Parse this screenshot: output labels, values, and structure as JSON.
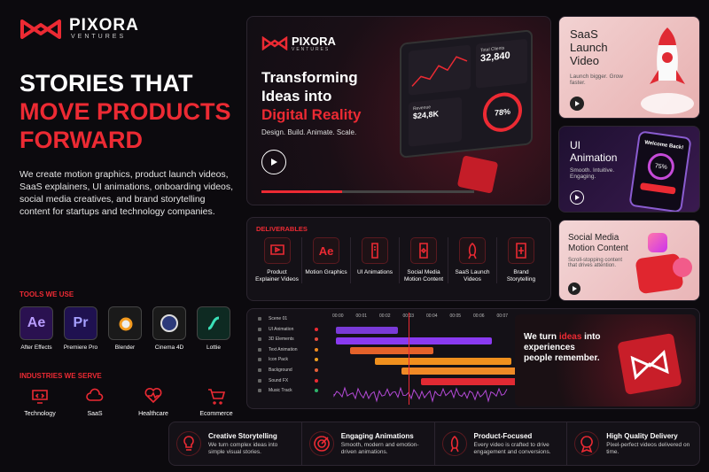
{
  "brand": {
    "name": "PIXORA",
    "tagline": "VENTURES"
  },
  "hero": {
    "headline_lines": [
      "STORIES THAT",
      "MOVE PRODUCTS",
      "FORWARD"
    ],
    "description": "We create motion graphics, product launch videos, SaaS explainers, UI animations, onboarding videos, social media creatives, and brand storytelling content for startups and technology companies."
  },
  "tools": {
    "title": "TOOLS WE USE",
    "items": [
      {
        "icon": "Ae",
        "label": "After Effects"
      },
      {
        "icon": "Pr",
        "label": "Premiere Pro"
      },
      {
        "label": "Blender"
      },
      {
        "label": "Cinema 4D"
      },
      {
        "label": "Lottie"
      }
    ]
  },
  "industries": {
    "title": "INDUSTRIES WE SERVE",
    "items": [
      "Technology",
      "SaaS",
      "Healthcare",
      "Ecommerce"
    ]
  },
  "showcase": {
    "brand_name": "PIXORA",
    "brand_tagline": "VENTURES",
    "headline_lines": [
      "Transforming",
      "Ideas into",
      "Digital Reality"
    ],
    "tagline": "Design. Build. Animate. Scale.",
    "stat_label": "Total Clients",
    "stat_value": "32,840",
    "revenue_label": "Revenue",
    "revenue_value": "$24,8K",
    "progress": "78%"
  },
  "side_cards": [
    {
      "title_lines": [
        "SaaS",
        "Launch",
        "Video"
      ],
      "subtitle": "Launch bigger. Grow faster."
    },
    {
      "title_lines": [
        "UI",
        "Animation"
      ],
      "subtitle": "Smooth. Intuitive. Engaging.",
      "screen_title": "Welcome Back!",
      "screen_value": "75%"
    },
    {
      "title_lines": [
        "Social Media",
        "Motion Content"
      ],
      "subtitle": "Scroll-stopping content that drives attention."
    }
  ],
  "deliverables": {
    "title": "DELIVERABLES",
    "items": [
      {
        "label": "Product Explainer Videos"
      },
      {
        "icon": "Ae",
        "label": "Motion Graphics"
      },
      {
        "label": "UI Animations"
      },
      {
        "label": "Social Media Motion Content"
      },
      {
        "label": "SaaS Launch Videos"
      },
      {
        "label": "Brand Storytelling"
      }
    ]
  },
  "timeline": {
    "layers": [
      "Scene 01",
      "UI Animation",
      "3D Elements",
      "Text Animation",
      "Icon Pack",
      "Background",
      "Sound FX",
      "Music Track"
    ],
    "times": [
      "00:00",
      "00:01",
      "00:02",
      "00:03",
      "00:04",
      "00:05",
      "00:06",
      "00:07"
    ]
  },
  "promo": {
    "parts": [
      "We turn ",
      "ideas",
      " into experiences people remember."
    ]
  },
  "features": [
    {
      "title": "Creative Storytelling",
      "description": "We turn complex ideas into simple visual stories."
    },
    {
      "title": "Engaging Animations",
      "description": "Smooth, modern and emotion-driven animations."
    },
    {
      "title": "Product-Focused",
      "description": "Every video is crafted to drive engagement and conversions."
    },
    {
      "title": "High Quality Delivery",
      "description": "Pixel-perfect videos delivered on time."
    }
  ]
}
